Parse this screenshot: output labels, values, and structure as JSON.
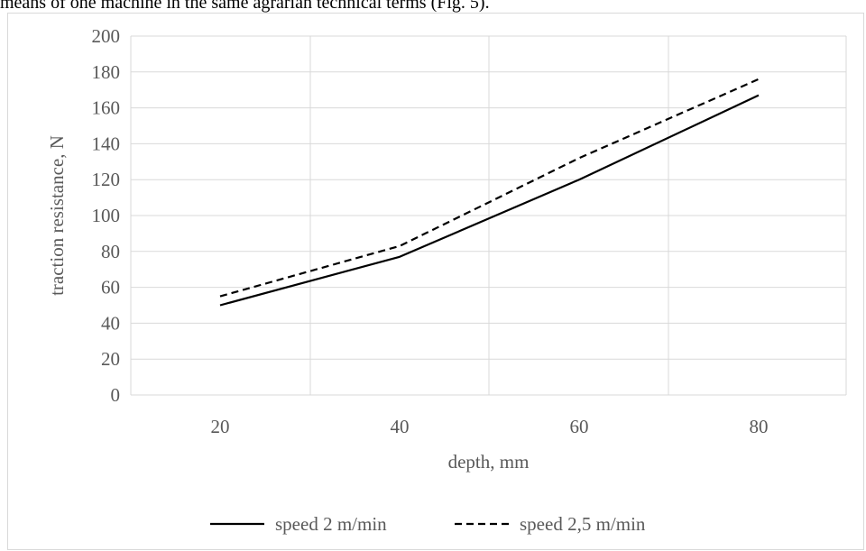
{
  "page": {
    "top_text": "means of one machine in the same agrarian technical terms (Fig. 5)."
  },
  "chart_data": {
    "type": "line",
    "title": "",
    "xlabel": "depth, mm",
    "ylabel": "traction resistance, N",
    "categories": [
      20,
      40,
      60,
      80
    ],
    "ylim": [
      0,
      200
    ],
    "yticks": [
      0,
      20,
      40,
      60,
      80,
      100,
      120,
      140,
      160,
      180,
      200
    ],
    "grid": true,
    "legend_position": "bottom",
    "series": [
      {
        "name": "speed 2 m/min",
        "values": [
          50,
          77,
          120,
          167
        ],
        "color": "#000000",
        "dash": "solid"
      },
      {
        "name": "speed 2,5 m/min",
        "values": [
          55,
          83,
          132,
          176
        ],
        "color": "#000000",
        "dash": "dashed"
      }
    ]
  }
}
